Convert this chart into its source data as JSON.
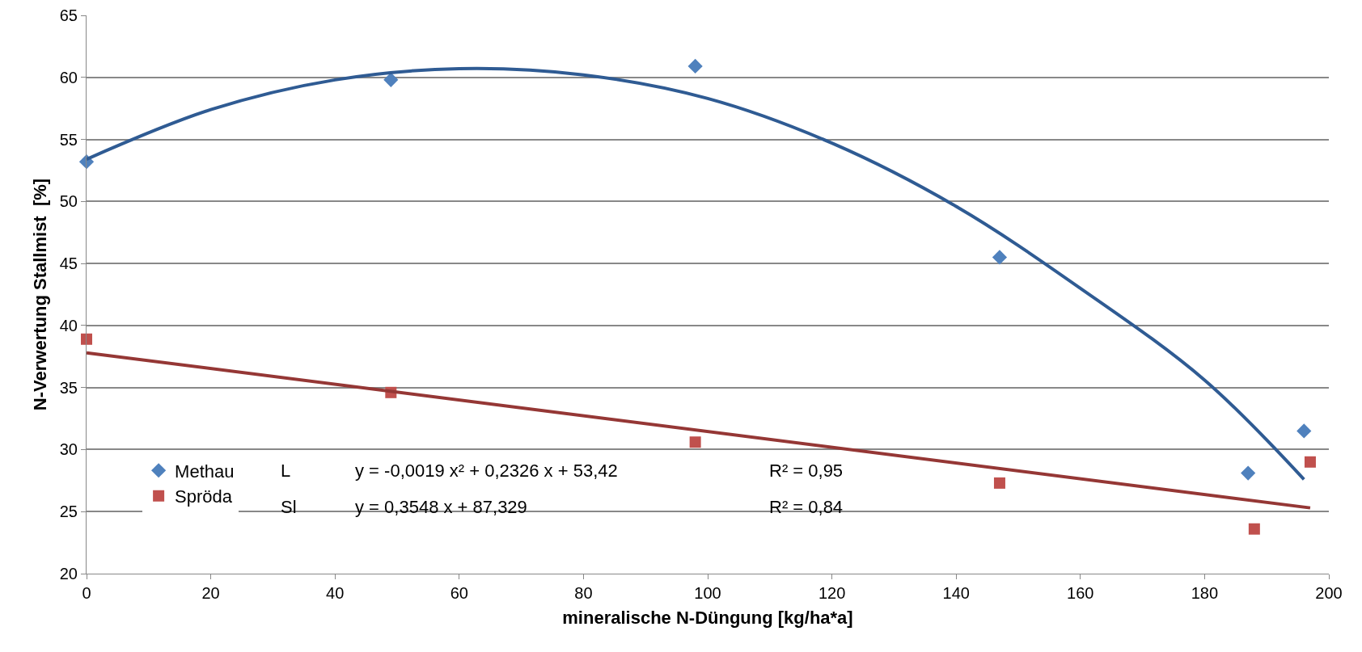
{
  "chart_data": {
    "type": "scatter",
    "xlabel": "mineralische N-Düngung [kg/ha*a]",
    "ylabel": "N-Verwertung Stallmist  [%]",
    "xlim": [
      0,
      200
    ],
    "xticks": [
      0,
      20,
      40,
      60,
      80,
      100,
      120,
      140,
      160,
      180,
      200
    ],
    "ylim": [
      20,
      65
    ],
    "yticks": [
      20,
      25,
      30,
      35,
      40,
      45,
      50,
      55,
      60,
      65
    ],
    "grid": "y",
    "legend": "bottom left",
    "series": [
      {
        "name": "Methau",
        "marker": "diamond",
        "color": "#4f81bd",
        "x": [
          0,
          49,
          98,
          147,
          187,
          196
        ],
        "values": [
          53.2,
          59.8,
          60.9,
          45.5,
          28.1,
          31.5
        ]
      },
      {
        "name": "Spröda",
        "marker": "square",
        "color": "#c0504d",
        "x": [
          0,
          49,
          98,
          147,
          188,
          197
        ],
        "values": [
          38.9,
          34.6,
          30.6,
          27.3,
          23.6,
          29.0
        ]
      },
      {
        "type": "line",
        "marker": "none",
        "line_style": "solid",
        "color": "#2f5b93",
        "x": [
          0,
          20,
          40,
          60,
          80,
          100,
          120,
          140,
          160,
          180,
          196
        ],
        "values": [
          53.4,
          57.4,
          59.8,
          60.7,
          60.2,
          58.3,
          54.7,
          49.6,
          43.0,
          35.6,
          27.6
        ]
      },
      {
        "type": "line",
        "marker": "none",
        "line_style": "solid",
        "color": "#953735",
        "x": [
          0,
          197
        ],
        "values": [
          37.8,
          25.3
        ]
      }
    ],
    "annotations": [
      "L",
      "y = -0,0019 x² + 0,2326 x + 53,42",
      "R² = 0,95",
      "Sl",
      "y = 0,3548 x + 87,329",
      "R² = 0,84"
    ]
  }
}
